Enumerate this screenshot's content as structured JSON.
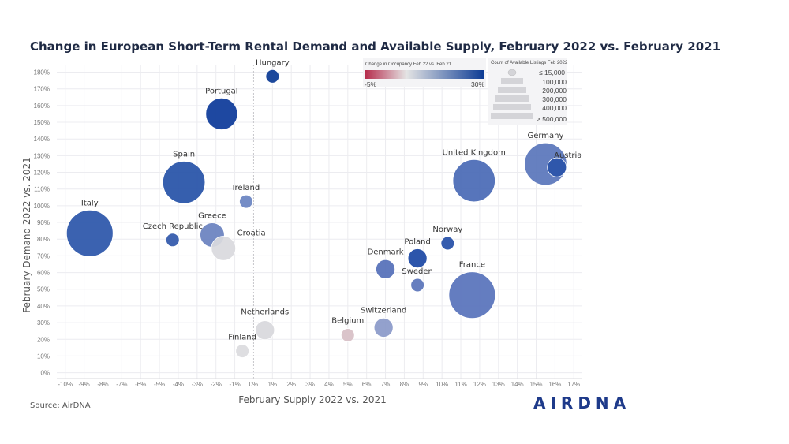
{
  "title": "Change in European Short-Term Rental Demand and Available Supply, February 2022 vs. February 2021",
  "source": "Source: AirDNA",
  "logo": "AIRDNA",
  "chart_data": {
    "type": "scatter",
    "xlabel": "February Supply 2022 vs. 2021",
    "ylabel": "February Demand 2022 vs. 2021",
    "xlim": [
      -10,
      17
    ],
    "ylim": [
      0,
      180
    ],
    "x_ticks": [
      "-10%",
      "-9%",
      "-8%",
      "-7%",
      "-6%",
      "-5%",
      "-4%",
      "-3%",
      "-2%",
      "-1%",
      "0%",
      "1%",
      "2%",
      "3%",
      "4%",
      "5%",
      "6%",
      "7%",
      "8%",
      "9%",
      "10%",
      "11%",
      "12%",
      "13%",
      "14%",
      "15%",
      "16%",
      "17%"
    ],
    "y_ticks": [
      "0%",
      "10%",
      "20%",
      "30%",
      "40%",
      "50%",
      "60%",
      "70%",
      "80%",
      "90%",
      "100%",
      "110%",
      "120%",
      "130%",
      "140%",
      "150%",
      "160%",
      "170%",
      "180%"
    ],
    "grid": true,
    "points": [
      {
        "label": "Hungary",
        "x": 1.0,
        "y": 177.5,
        "listings": 15000,
        "color": "#0b3a94"
      },
      {
        "label": "Portugal",
        "x": -1.7,
        "y": 155.0,
        "listings": 200000,
        "color": "#0d3a9a"
      },
      {
        "label": "Spain",
        "x": -3.7,
        "y": 114.0,
        "listings": 400000,
        "color": "#2753a8"
      },
      {
        "label": "Ireland",
        "x": -0.4,
        "y": 102.5,
        "listings": 15000,
        "color": "#6b84c2"
      },
      {
        "label": "Italy",
        "x": -8.7,
        "y": 83.5,
        "listings": 500000,
        "color": "#2c56aa"
      },
      {
        "label": "Czech Republic",
        "x": -4.3,
        "y": 79.5,
        "listings": 15000,
        "color": "#3158ab"
      },
      {
        "label": "Greece",
        "x": -2.2,
        "y": 82.5,
        "listings": 100000,
        "color": "#6a82c0"
      },
      {
        "label": "Croatia",
        "x": -1.6,
        "y": 74.5,
        "listings": 100000,
        "color": "#d9d9de"
      },
      {
        "label": "Germany",
        "x": 15.5,
        "y": 125.0,
        "listings": 400000,
        "color": "#5a76bb"
      },
      {
        "label": "Austria",
        "x": 16.1,
        "y": 123.0,
        "listings": 50000,
        "color": "#2b54a9"
      },
      {
        "label": "United Kingdom",
        "x": 11.7,
        "y": 115.0,
        "listings": 400000,
        "color": "#4a6bb6"
      },
      {
        "label": "Norway",
        "x": 10.3,
        "y": 77.5,
        "listings": 15000,
        "color": "#2650a8"
      },
      {
        "label": "Poland",
        "x": 8.7,
        "y": 68.5,
        "listings": 50000,
        "color": "#1c48a5"
      },
      {
        "label": "Denmark",
        "x": 7.0,
        "y": 62.0,
        "listings": 50000,
        "color": "#5570b9"
      },
      {
        "label": "Sweden",
        "x": 8.7,
        "y": 52.5,
        "listings": 15000,
        "color": "#5a74ba"
      },
      {
        "label": "France",
        "x": 11.6,
        "y": 46.5,
        "listings": 500000,
        "color": "#5873bb"
      },
      {
        "label": "Netherlands",
        "x": 0.6,
        "y": 25.5,
        "listings": 50000,
        "color": "#d8d8dd"
      },
      {
        "label": "Belgium",
        "x": 5.0,
        "y": 22.5,
        "listings": 15000,
        "color": "#d7bfc6"
      },
      {
        "label": "Switzerland",
        "x": 6.9,
        "y": 27.0,
        "listings": 50000,
        "color": "#8b9ac9"
      },
      {
        "label": "Finland",
        "x": -0.6,
        "y": 13.0,
        "listings": 15000,
        "color": "#dcdcdf"
      }
    ],
    "color_legend": {
      "title": "Change in Occupancy Feb 22 vs. Feb 21",
      "min_label": "-5%",
      "max_label": "30%",
      "colors": [
        "#b5294a",
        "#e4e4e4",
        "#0b3a94"
      ]
    },
    "size_legend": {
      "title": "Count of Available Listings Feb 2022",
      "items": [
        "≤ 15,000",
        "100,000",
        "200,000",
        "300,000",
        "400,000",
        "≥ 500,000"
      ]
    }
  }
}
